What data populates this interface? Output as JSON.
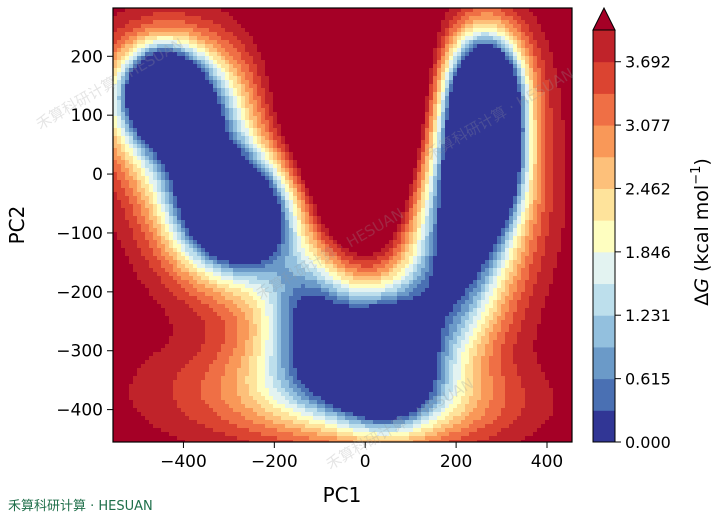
{
  "chart_data": {
    "type": "heatmap",
    "subtype": "filled-contour free energy landscape",
    "xlabel": "PC1",
    "ylabel": "PC2",
    "xlim": [
      -555,
      455
    ],
    "ylim": [
      -455,
      282
    ],
    "xticks": [
      "−400",
      "−200",
      "0",
      "200",
      "400"
    ],
    "xtick_values": [
      -400,
      -200,
      0,
      200,
      400
    ],
    "yticks": [
      "−400",
      "−300",
      "−200",
      "−100",
      "0",
      "100",
      "200"
    ],
    "ytick_values": [
      -400,
      -300,
      -200,
      -100,
      0,
      100,
      200
    ],
    "colorbar": {
      "label_prefix": "Δ",
      "label_var": "G",
      "label_units": " (kcal mol",
      "label_sup": "−1",
      "label_close": ")",
      "ticks": [
        "0.000",
        "0.615",
        "1.231",
        "1.846",
        "2.462",
        "3.077",
        "3.692"
      ],
      "tick_values": [
        0.0,
        0.615,
        1.231,
        1.846,
        2.462,
        3.077,
        3.692
      ],
      "vmin": 0.0,
      "vmax": 4.0,
      "n_levels": 13,
      "extend": "max",
      "colormap": "RdYlBu_r"
    },
    "minima": [
      {
        "x": -448,
        "y": 145,
        "dG": 0.0
      },
      {
        "x": 265,
        "y": 90,
        "dG": 0.05
      },
      {
        "x": -280,
        "y": -60,
        "dG": 0.6
      },
      {
        "x": 50,
        "y": -320,
        "dG": 0.75
      },
      {
        "x": -110,
        "y": -320,
        "dG": 1.1
      }
    ],
    "colors": [
      "#313695",
      "#4a70b3",
      "#6b9ac8",
      "#93c0de",
      "#bddfec",
      "#e3f3f1",
      "#fefec0",
      "#fee39b",
      "#fdc07a",
      "#f99858",
      "#ef6f45",
      "#db4431",
      "#c0232a",
      "#a50026"
    ]
  },
  "watermark": {
    "corner_text": "禾算科研计算 · HESUAN",
    "overlay_text": "禾算科研计算 · HESUAN"
  }
}
